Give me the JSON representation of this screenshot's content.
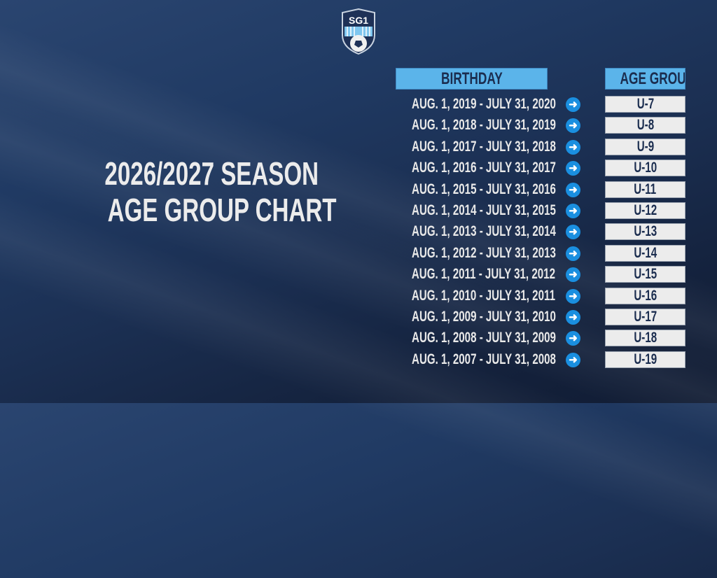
{
  "title": {
    "line1": "2026/2027 SEASON",
    "line2": "AGE GROUP CHART"
  },
  "logo": {
    "text": "SG1"
  },
  "headers": {
    "birthday": "BIRTHDAY",
    "age_group": "AGE GROUP"
  },
  "colors": {
    "header_bg": "#5bb4ea",
    "arrow": "#1a8fe0",
    "background": "#1b2f52"
  },
  "rows": [
    {
      "birthday": "AUG. 1, 2019 - JULY 31, 2020",
      "age_group": "U-7"
    },
    {
      "birthday": "AUG. 1, 2018 - JULY 31, 2019",
      "age_group": "U-8"
    },
    {
      "birthday": "AUG. 1, 2017 - JULY 31, 2018",
      "age_group": "U-9"
    },
    {
      "birthday": "AUG. 1, 2016 - JULY 31, 2017",
      "age_group": "U-10"
    },
    {
      "birthday": "AUG. 1, 2015 - JULY 31, 2016",
      "age_group": "U-11"
    },
    {
      "birthday": "AUG. 1, 2014 - JULY 31, 2015",
      "age_group": "U-12"
    },
    {
      "birthday": "AUG. 1, 2013 - JULY 31, 2014",
      "age_group": "U-13"
    },
    {
      "birthday": "AUG. 1, 2012 - JULY 31, 2013",
      "age_group": "U-14"
    },
    {
      "birthday": "AUG. 1, 2011 - JULY 31, 2012",
      "age_group": "U-15"
    },
    {
      "birthday": "AUG. 1, 2010 - JULY 31, 2011",
      "age_group": "U-16"
    },
    {
      "birthday": "AUG. 1, 2009 - JULY 31, 2010",
      "age_group": "U-17"
    },
    {
      "birthday": "AUG. 1, 2008 - JULY 31, 2009",
      "age_group": "U-18"
    },
    {
      "birthday": "AUG. 1, 2007 - JULY 31, 2008",
      "age_group": "U-19"
    }
  ]
}
